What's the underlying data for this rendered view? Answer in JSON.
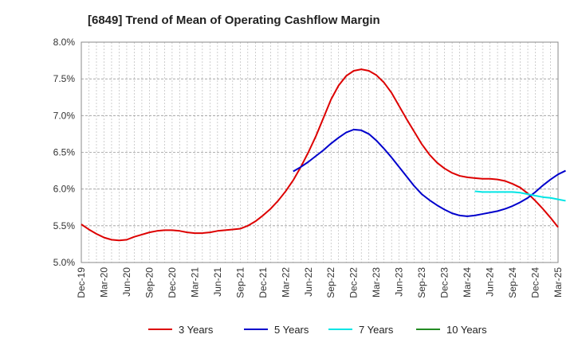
{
  "chart_data": {
    "type": "line",
    "title": "[6849]  Trend of Mean of Operating Cashflow Margin",
    "xlabel": "",
    "ylabel": "",
    "ylim": [
      5.0,
      8.0
    ],
    "y_ticks": [
      5.0,
      5.5,
      6.0,
      6.5,
      7.0,
      7.5,
      8.0
    ],
    "y_tick_labels": [
      "5.0%",
      "5.5%",
      "6.0%",
      "6.5%",
      "7.0%",
      "7.5%",
      "8.0%"
    ],
    "x_ticks": [
      "Dec-19",
      "Mar-20",
      "Jun-20",
      "Sep-20",
      "Dec-20",
      "Mar-21",
      "Jun-21",
      "Sep-21",
      "Dec-21",
      "Mar-22",
      "Jun-22",
      "Sep-22",
      "Dec-22",
      "Mar-23",
      "Jun-23",
      "Sep-23",
      "Dec-23",
      "Mar-24",
      "Jun-24",
      "Sep-24",
      "Dec-24",
      "Mar-25"
    ],
    "grid": true,
    "legend_position": "bottom",
    "series": [
      {
        "name": "3 Years",
        "color": "#dd0000",
        "start_index": 0,
        "values": [
          5.52,
          5.45,
          5.39,
          5.34,
          5.31,
          5.3,
          5.31,
          5.35,
          5.38,
          5.41,
          5.43,
          5.44,
          5.44,
          5.43,
          5.41,
          5.4,
          5.4,
          5.41,
          5.43,
          5.44,
          5.45,
          5.46,
          5.5,
          5.56,
          5.64,
          5.73,
          5.84,
          5.97,
          6.12,
          6.3,
          6.5,
          6.72,
          6.97,
          7.22,
          7.41,
          7.54,
          7.61,
          7.63,
          7.61,
          7.55,
          7.45,
          7.31,
          7.13,
          6.95,
          6.78,
          6.61,
          6.47,
          6.36,
          6.28,
          6.22,
          6.18,
          6.16,
          6.15,
          6.14,
          6.14,
          6.13,
          6.11,
          6.07,
          6.02,
          5.94,
          5.84,
          5.73,
          5.61,
          5.48
        ]
      },
      {
        "name": "5 Years",
        "color": "#0000cc",
        "start_index": 28,
        "values": [
          6.24,
          6.3,
          6.37,
          6.45,
          6.53,
          6.62,
          6.7,
          6.77,
          6.81,
          6.8,
          6.75,
          6.66,
          6.55,
          6.43,
          6.3,
          6.17,
          6.04,
          5.93,
          5.85,
          5.78,
          5.72,
          5.67,
          5.64,
          5.63,
          5.64,
          5.66,
          5.68,
          5.7,
          5.73,
          5.77,
          5.82,
          5.88,
          5.96,
          6.05,
          6.13,
          6.2,
          6.25
        ]
      },
      {
        "name": "7 Years",
        "color": "#00e5e5",
        "start_index": 52,
        "values": [
          5.97,
          5.96,
          5.96,
          5.96,
          5.96,
          5.96,
          5.95,
          5.93,
          5.91,
          5.89,
          5.88,
          5.86,
          5.84
        ]
      },
      {
        "name": "10 Years",
        "color": "#228b22",
        "start_index": 0,
        "values": []
      }
    ]
  }
}
